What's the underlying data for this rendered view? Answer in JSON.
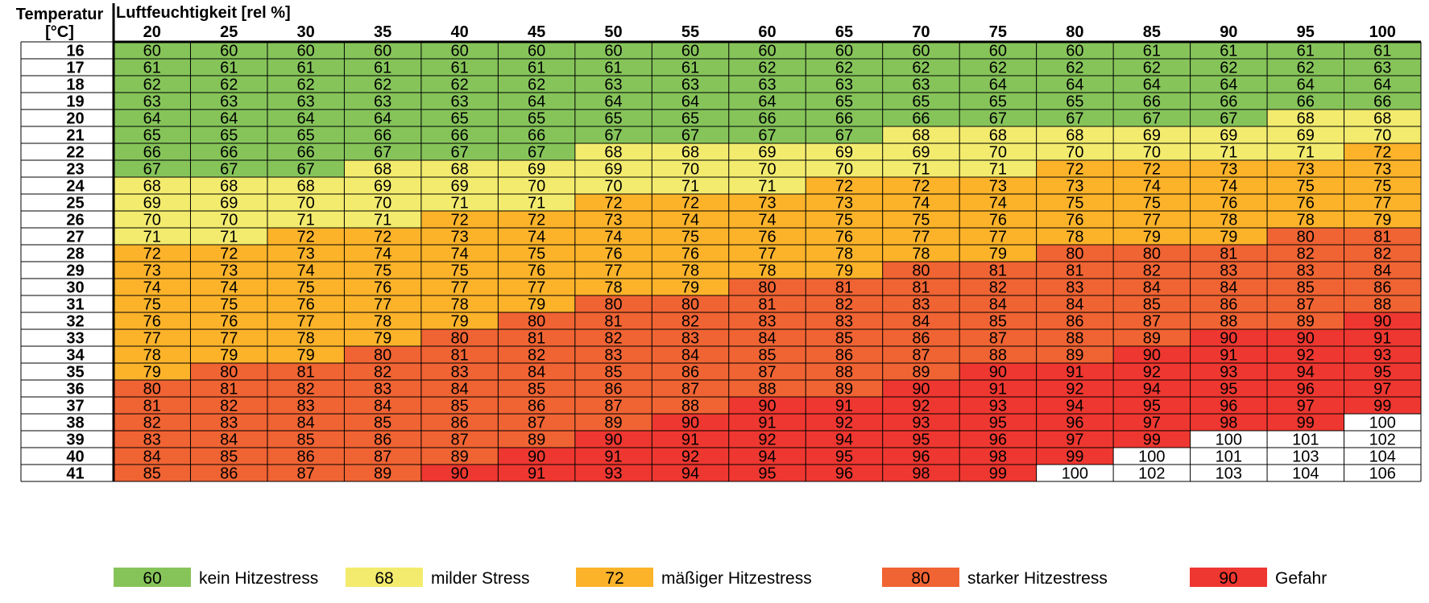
{
  "chart_data": {
    "type": "heatmap",
    "row_axis_label": [
      "Temperatur",
      "[°C]"
    ],
    "col_axis_label": "Luftfeuchtigkeit [rel %]",
    "columns": [
      20,
      25,
      30,
      35,
      40,
      45,
      50,
      55,
      60,
      65,
      70,
      75,
      80,
      85,
      90,
      95,
      100
    ],
    "rows": [
      16,
      17,
      18,
      19,
      20,
      21,
      22,
      23,
      24,
      25,
      26,
      27,
      28,
      29,
      30,
      31,
      32,
      33,
      34,
      35,
      36,
      37,
      38,
      39,
      40,
      41
    ],
    "values": [
      [
        60,
        60,
        60,
        60,
        60,
        60,
        60,
        60,
        60,
        60,
        60,
        60,
        60,
        61,
        61,
        61,
        61
      ],
      [
        61,
        61,
        61,
        61,
        61,
        61,
        61,
        61,
        62,
        62,
        62,
        62,
        62,
        62,
        62,
        62,
        63
      ],
      [
        62,
        62,
        62,
        62,
        62,
        62,
        63,
        63,
        63,
        63,
        63,
        64,
        64,
        64,
        64,
        64,
        64
      ],
      [
        63,
        63,
        63,
        63,
        63,
        64,
        64,
        64,
        64,
        65,
        65,
        65,
        65,
        66,
        66,
        66,
        66
      ],
      [
        64,
        64,
        64,
        64,
        65,
        65,
        65,
        65,
        66,
        66,
        66,
        67,
        67,
        67,
        67,
        68,
        68
      ],
      [
        65,
        65,
        65,
        66,
        66,
        66,
        67,
        67,
        67,
        67,
        68,
        68,
        68,
        69,
        69,
        69,
        70
      ],
      [
        66,
        66,
        66,
        67,
        67,
        67,
        68,
        68,
        69,
        69,
        69,
        70,
        70,
        70,
        71,
        71,
        72
      ],
      [
        67,
        67,
        67,
        68,
        68,
        69,
        69,
        70,
        70,
        70,
        71,
        71,
        72,
        72,
        73,
        73,
        73
      ],
      [
        68,
        68,
        68,
        69,
        69,
        70,
        70,
        71,
        71,
        72,
        72,
        73,
        73,
        74,
        74,
        75,
        75
      ],
      [
        69,
        69,
        70,
        70,
        71,
        71,
        72,
        72,
        73,
        73,
        74,
        74,
        75,
        75,
        76,
        76,
        77
      ],
      [
        70,
        70,
        71,
        71,
        72,
        72,
        73,
        74,
        74,
        75,
        75,
        76,
        76,
        77,
        78,
        78,
        79
      ],
      [
        71,
        71,
        72,
        72,
        73,
        74,
        74,
        75,
        76,
        76,
        77,
        77,
        78,
        79,
        79,
        80,
        81
      ],
      [
        72,
        72,
        73,
        74,
        74,
        75,
        76,
        76,
        77,
        78,
        78,
        79,
        80,
        80,
        81,
        82,
        82
      ],
      [
        73,
        73,
        74,
        75,
        75,
        76,
        77,
        78,
        78,
        79,
        80,
        81,
        81,
        82,
        83,
        83,
        84
      ],
      [
        74,
        74,
        75,
        76,
        77,
        77,
        78,
        79,
        80,
        81,
        81,
        82,
        83,
        84,
        84,
        85,
        86
      ],
      [
        75,
        75,
        76,
        77,
        78,
        79,
        80,
        80,
        81,
        82,
        83,
        84,
        84,
        85,
        86,
        87,
        88
      ],
      [
        76,
        76,
        77,
        78,
        79,
        80,
        81,
        82,
        83,
        83,
        84,
        85,
        86,
        87,
        88,
        89,
        90
      ],
      [
        77,
        77,
        78,
        79,
        80,
        81,
        82,
        83,
        84,
        85,
        86,
        87,
        88,
        89,
        90,
        90,
        91
      ],
      [
        78,
        79,
        79,
        80,
        81,
        82,
        83,
        84,
        85,
        86,
        87,
        88,
        89,
        90,
        91,
        92,
        93
      ],
      [
        79,
        80,
        81,
        82,
        83,
        84,
        85,
        86,
        87,
        88,
        89,
        90,
        91,
        92,
        93,
        94,
        95
      ],
      [
        80,
        81,
        82,
        83,
        84,
        85,
        86,
        87,
        88,
        89,
        90,
        91,
        92,
        94,
        95,
        96,
        97
      ],
      [
        81,
        82,
        83,
        84,
        85,
        86,
        87,
        88,
        90,
        91,
        92,
        93,
        94,
        95,
        96,
        97,
        99
      ],
      [
        82,
        83,
        84,
        85,
        86,
        87,
        89,
        90,
        91,
        92,
        93,
        95,
        96,
        97,
        98,
        99,
        100
      ],
      [
        83,
        84,
        85,
        86,
        87,
        89,
        90,
        91,
        92,
        94,
        95,
        96,
        97,
        99,
        100,
        101,
        102
      ],
      [
        84,
        85,
        86,
        87,
        89,
        90,
        91,
        92,
        94,
        95,
        96,
        98,
        99,
        100,
        101,
        103,
        104
      ],
      [
        85,
        86,
        87,
        89,
        90,
        91,
        93,
        94,
        95,
        96,
        98,
        99,
        100,
        102,
        103,
        104,
        106
      ]
    ],
    "categories": [
      [
        1,
        1,
        1,
        1,
        1,
        1,
        1,
        1,
        1,
        1,
        1,
        1,
        1,
        1,
        1,
        1,
        1
      ],
      [
        1,
        1,
        1,
        1,
        1,
        1,
        1,
        1,
        1,
        1,
        1,
        1,
        1,
        1,
        1,
        1,
        1
      ],
      [
        1,
        1,
        1,
        1,
        1,
        1,
        1,
        1,
        1,
        1,
        1,
        1,
        1,
        1,
        1,
        1,
        1
      ],
      [
        1,
        1,
        1,
        1,
        1,
        1,
        1,
        1,
        1,
        1,
        1,
        1,
        1,
        1,
        1,
        1,
        1
      ],
      [
        1,
        1,
        1,
        1,
        1,
        1,
        1,
        1,
        1,
        1,
        1,
        1,
        1,
        1,
        1,
        2,
        2
      ],
      [
        1,
        1,
        1,
        1,
        1,
        1,
        1,
        1,
        1,
        1,
        2,
        2,
        2,
        2,
        2,
        2,
        2
      ],
      [
        1,
        1,
        1,
        1,
        1,
        1,
        2,
        2,
        2,
        2,
        2,
        2,
        2,
        2,
        2,
        2,
        3
      ],
      [
        1,
        1,
        1,
        2,
        2,
        2,
        2,
        2,
        2,
        2,
        2,
        2,
        3,
        3,
        3,
        3,
        3
      ],
      [
        2,
        2,
        2,
        2,
        2,
        2,
        2,
        2,
        2,
        3,
        3,
        3,
        3,
        3,
        3,
        3,
        3
      ],
      [
        2,
        2,
        2,
        2,
        2,
        2,
        3,
        3,
        3,
        3,
        3,
        3,
        3,
        3,
        3,
        3,
        3
      ],
      [
        2,
        2,
        2,
        2,
        3,
        3,
        3,
        3,
        3,
        3,
        3,
        3,
        3,
        3,
        3,
        3,
        3
      ],
      [
        2,
        2,
        3,
        3,
        3,
        3,
        3,
        3,
        3,
        3,
        3,
        3,
        3,
        3,
        3,
        4,
        4
      ],
      [
        3,
        3,
        3,
        3,
        3,
        3,
        3,
        3,
        3,
        3,
        3,
        3,
        4,
        4,
        4,
        4,
        4
      ],
      [
        3,
        3,
        3,
        3,
        3,
        3,
        3,
        3,
        3,
        3,
        4,
        4,
        4,
        4,
        4,
        4,
        4
      ],
      [
        3,
        3,
        3,
        3,
        3,
        3,
        3,
        3,
        4,
        4,
        4,
        4,
        4,
        4,
        4,
        4,
        4
      ],
      [
        3,
        3,
        3,
        3,
        3,
        3,
        4,
        4,
        4,
        4,
        4,
        4,
        4,
        4,
        4,
        4,
        4
      ],
      [
        3,
        3,
        3,
        3,
        3,
        4,
        4,
        4,
        4,
        4,
        4,
        4,
        4,
        4,
        4,
        4,
        5
      ],
      [
        3,
        3,
        3,
        3,
        4,
        4,
        4,
        4,
        4,
        4,
        4,
        4,
        4,
        4,
        5,
        5,
        5
      ],
      [
        3,
        3,
        3,
        4,
        4,
        4,
        4,
        4,
        4,
        4,
        4,
        4,
        4,
        5,
        5,
        5,
        5
      ],
      [
        3,
        4,
        4,
        4,
        4,
        4,
        4,
        4,
        4,
        4,
        4,
        5,
        5,
        5,
        5,
        5,
        5
      ],
      [
        4,
        4,
        4,
        4,
        4,
        4,
        4,
        4,
        4,
        4,
        5,
        5,
        5,
        5,
        5,
        5,
        5
      ],
      [
        4,
        4,
        4,
        4,
        4,
        4,
        4,
        4,
        5,
        5,
        5,
        5,
        5,
        5,
        5,
        5,
        5
      ],
      [
        4,
        4,
        4,
        4,
        4,
        4,
        4,
        5,
        5,
        5,
        5,
        5,
        5,
        5,
        5,
        5,
        0
      ],
      [
        4,
        4,
        4,
        4,
        4,
        4,
        5,
        5,
        5,
        5,
        5,
        5,
        5,
        5,
        0,
        0,
        0
      ],
      [
        4,
        4,
        4,
        4,
        4,
        5,
        5,
        5,
        5,
        5,
        5,
        5,
        5,
        0,
        0,
        0,
        0
      ],
      [
        4,
        4,
        4,
        4,
        5,
        5,
        5,
        5,
        5,
        5,
        5,
        5,
        0,
        0,
        0,
        0,
        0
      ]
    ],
    "category_colors": {
      "0": "#ffffff",
      "1": "#86c45a",
      "2": "#f2eb6e",
      "3": "#fcb32a",
      "4": "#f06333",
      "5": "#ee3730"
    },
    "legend": [
      {
        "value": "60",
        "label": "kein Hitzestress",
        "color": "#86c45a"
      },
      {
        "value": "68",
        "label": "milder Stress",
        "color": "#f2eb6e"
      },
      {
        "value": "72",
        "label": "mäßiger Hitzestress",
        "color": "#fcb32a"
      },
      {
        "value": "80",
        "label": "starker Hitzestress",
        "color": "#f06333"
      },
      {
        "value": "90",
        "label": "Gefahr",
        "color": "#ee3730"
      }
    ],
    "legend_placement": "bottom",
    "grid": true
  }
}
